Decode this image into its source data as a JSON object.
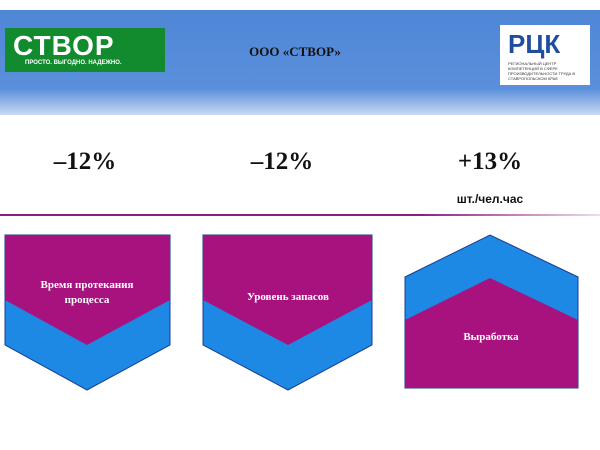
{
  "header": {
    "logo_text": "СТВОР",
    "logo_tagline": "ПРОСТО. ВЫГОДНО. НАДЕЖНО.",
    "title": "ООО «СТВОР»",
    "partner_logo": "РЦК",
    "partner_caption": "РЕГИОНАЛЬНЫЙ ЦЕНТР КОМПЕТЕНЦИЙ В СФЕРЕ ПРОИЗВОДИТЕЛЬНОСТИ ТРУДА В СТАВРОПОЛЬСКОМ КРАЕ"
  },
  "metrics": [
    {
      "value": "–12%"
    },
    {
      "value": "–12%"
    },
    {
      "value": "+13%",
      "unit": "шт./чел.час"
    }
  ],
  "cards": [
    {
      "label": "Время протекания процесса"
    },
    {
      "label": "Уровень запасов"
    },
    {
      "label": "Выработка"
    }
  ]
}
